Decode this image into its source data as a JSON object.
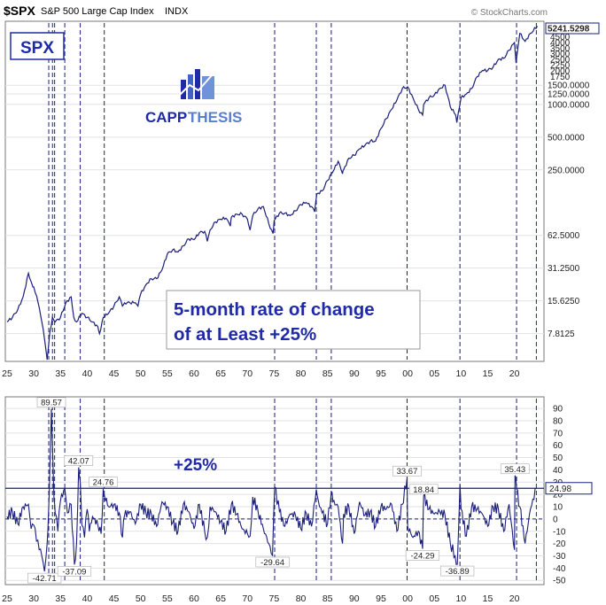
{
  "header": {
    "symbol": "$SPX",
    "name": "S&P 500 Large Cap Index",
    "exchange": "INDX",
    "source": "© StockCharts.com"
  },
  "badge": {
    "label": "SPX"
  },
  "logo": {
    "text_dark": "CAPP",
    "text_light": "THESIS"
  },
  "callout": {
    "line1": "5-month rate of change",
    "line2": "of at Least +25%"
  },
  "threshold_label": "+25%",
  "colors": {
    "line": "#1a1f7a",
    "accent": "#1f2aa8",
    "grid": "#e2e2e2",
    "vline": "#1a1f7a"
  },
  "chart_data": [
    {
      "type": "line",
      "title": "",
      "series": [
        {
          "name": "",
          "x": [
            1925,
            1926,
            1927,
            1928,
            1929,
            1929.7,
            1930,
            1930.8,
            1931.5,
            1932,
            1932.5,
            1933,
            1933.5,
            1934,
            1935,
            1936,
            1937,
            1937.5,
            1938,
            1939,
            1940,
            1941,
            1942,
            1942.3,
            1943,
            1944,
            1945,
            1946,
            1946.6,
            1947,
            1948,
            1949,
            1949.5,
            1950,
            1951,
            1952,
            1953,
            1954,
            1955,
            1956,
            1957,
            1958,
            1959,
            1960,
            1961,
            1962,
            1962.5,
            1963,
            1964,
            1965,
            1966,
            1966.8,
            1967,
            1968,
            1969,
            1970,
            1970.5,
            1971,
            1972,
            1973,
            1974,
            1974.8,
            1975,
            1976,
            1977,
            1978,
            1979,
            1980,
            1981,
            1982,
            1982.6,
            1983,
            1984,
            1985,
            1986,
            1987,
            1987.8,
            1988,
            1989,
            1990,
            1991,
            1992,
            1993,
            1994,
            1995,
            1996,
            1997,
            1998,
            1999,
            2000,
            2001,
            2002,
            2002.8,
            2003,
            2004,
            2005,
            2006,
            2007,
            2008,
            2009,
            2009.2,
            2010,
            2011,
            2012,
            2013,
            2014,
            2015,
            2016,
            2017,
            2018,
            2019,
            2020,
            2020.3,
            2021,
            2022,
            2023,
            2024.3
          ],
          "values": [
            10,
            11,
            13,
            17,
            28,
            22,
            21,
            15,
            10,
            7,
            4.5,
            8,
            11,
            10,
            11,
            15,
            17,
            11,
            10,
            12,
            11,
            10,
            9,
            7.8,
            11,
            12,
            14,
            17,
            14,
            15,
            15,
            15,
            14,
            18,
            22,
            25,
            25,
            30,
            42,
            46,
            44,
            50,
            58,
            57,
            66,
            68,
            55,
            70,
            83,
            88,
            90,
            76,
            92,
            98,
            98,
            88,
            70,
            95,
            110,
            115,
            80,
            65,
            85,
            100,
            100,
            95,
            105,
            120,
            125,
            115,
            103,
            150,
            160,
            200,
            240,
            300,
            230,
            250,
            320,
            340,
            390,
            420,
            460,
            460,
            600,
            740,
            900,
            1100,
            1400,
            1450,
            1150,
            900,
            800,
            1000,
            1150,
            1220,
            1400,
            1500,
            950,
            800,
            680,
            1150,
            1250,
            1400,
            1800,
            2050,
            2050,
            2200,
            2600,
            2650,
            3150,
            3700,
            2400,
            4500,
            3800,
            4500,
            5241.5298
          ]
        }
      ],
      "ylim": [
        4.5,
        5600
      ],
      "log_scale": true,
      "x_ticks": [
        "25",
        "30",
        "35",
        "40",
        "45",
        "50",
        "55",
        "60",
        "65",
        "70",
        "75",
        "80",
        "85",
        "90",
        "95",
        "00",
        "05",
        "10",
        "15",
        "20"
      ],
      "y_ticks": [
        "5241.5298",
        "1500.0000",
        "1250.0000",
        "1000.0000",
        "500.0000",
        "250.0000",
        "62.5000",
        "31.2500",
        "15.6250",
        "7.8125"
      ],
      "y_ticks_compressed": [
        "4500",
        "4000",
        "3500",
        "3000",
        "2500",
        "2250",
        "2000",
        "1750"
      ],
      "last_value": "5241.5298",
      "vertical_markers": [
        1932.8,
        1933.5,
        1933.9,
        1935.8,
        1938.7,
        1943.2,
        1975.1,
        1982.9,
        1985.7,
        1999.9,
        2009.8,
        2020.4,
        2024.1
      ]
    },
    {
      "type": "line",
      "title": "",
      "series": [
        {
          "name": "",
          "x": [
            1925,
            1926,
            1927,
            1928,
            1929,
            1929.5,
            1930,
            1930.5,
            1931,
            1931.5,
            1932,
            1932.5,
            1932.8,
            1933,
            1933.3,
            1933.5,
            1933.8,
            1934,
            1934.5,
            1935,
            1935.8,
            1936.3,
            1937,
            1937.6,
            1938,
            1938.4,
            1938.7,
            1939,
            1939.5,
            1940,
            1940.4,
            1941,
            1942,
            1942.6,
            1943,
            1943.2,
            1944,
            1945,
            1946,
            1946.6,
            1947,
            1948,
            1949,
            1950,
            1951,
            1952,
            1953,
            1954,
            1955,
            1956,
            1957,
            1958,
            1959,
            1960,
            1961,
            1962,
            1962.5,
            1963,
            1964,
            1965,
            1966,
            1967,
            1968,
            1969,
            1970,
            1970.5,
            1971,
            1972,
            1973,
            1974,
            1974.7,
            1975.1,
            1976,
            1977,
            1978,
            1979,
            1980,
            1981,
            1982,
            1982.9,
            1983.5,
            1984,
            1985,
            1985.7,
            1986,
            1987,
            1987.8,
            1988,
            1989,
            1990,
            1991,
            1992,
            1993,
            1994,
            1995,
            1996,
            1997,
            1998,
            1999,
            1999.9,
            2000,
            2001,
            2002,
            2002.8,
            2003,
            2004,
            2005,
            2006,
            2007,
            2008,
            2008.9,
            2009.3,
            2009.8,
            2010,
            2011,
            2012,
            2013,
            2014,
            2015,
            2016,
            2017,
            2018,
            2019,
            2020,
            2020.1,
            2020.4,
            2021,
            2022,
            2023,
            2024.1
          ],
          "values": [
            2,
            6,
            -4,
            10,
            12,
            -8,
            -5,
            -18,
            -25,
            -30,
            -42.71,
            -20,
            10,
            40,
            89.57,
            60,
            15,
            5,
            -10,
            15,
            25,
            5,
            12,
            -37.09,
            -20,
            42.07,
            30,
            -5,
            -15,
            8,
            -10,
            2,
            -5,
            -12,
            24.76,
            20,
            10,
            12,
            5,
            -15,
            3,
            6,
            -4,
            12,
            5,
            4,
            -6,
            14,
            10,
            -3,
            -10,
            12,
            6,
            -8,
            12,
            -10,
            -15,
            10,
            6,
            -2,
            -10,
            12,
            4,
            -8,
            -12,
            -14,
            18,
            6,
            -8,
            -20,
            -29.64,
            26,
            6,
            -6,
            4,
            3,
            -8,
            5,
            -6,
            24,
            10,
            5,
            -4,
            22,
            14,
            10,
            -20,
            4,
            10,
            -12,
            14,
            3,
            6,
            -6,
            10,
            8,
            12,
            -10,
            12,
            33.67,
            -6,
            -15,
            -10,
            -24.29,
            18.84,
            8,
            4,
            6,
            3,
            -20,
            -30,
            -36.89,
            28,
            8,
            -14,
            10,
            8,
            4,
            -6,
            10,
            8,
            -10,
            12,
            -25,
            35.43,
            24,
            10,
            -20,
            8,
            24.98
          ]
        }
      ],
      "ylim": [
        -52,
        98
      ],
      "threshold": 25,
      "x_ticks": [
        "25",
        "30",
        "35",
        "40",
        "45",
        "50",
        "55",
        "60",
        "65",
        "70",
        "75",
        "80",
        "85",
        "90",
        "95",
        "00",
        "05",
        "10",
        "15",
        "20"
      ],
      "y_ticks": [
        "90",
        "80",
        "70",
        "60",
        "50",
        "40",
        "30",
        "20",
        "10",
        "0",
        "-10",
        "-20",
        "-30",
        "-40",
        "-50"
      ],
      "data_labels": [
        "89.57",
        "42.07",
        "24.76",
        "33.67",
        "18.84",
        "35.43",
        "-42.71",
        "-37.09",
        "-29.64",
        "-24.29",
        "-36.89"
      ],
      "last_value": "24.98",
      "vertical_markers": [
        1932.8,
        1933.5,
        1933.9,
        1935.8,
        1938.7,
        1943.2,
        1975.1,
        1982.9,
        1985.7,
        1999.9,
        2009.8,
        2020.4,
        2024.1
      ]
    }
  ]
}
